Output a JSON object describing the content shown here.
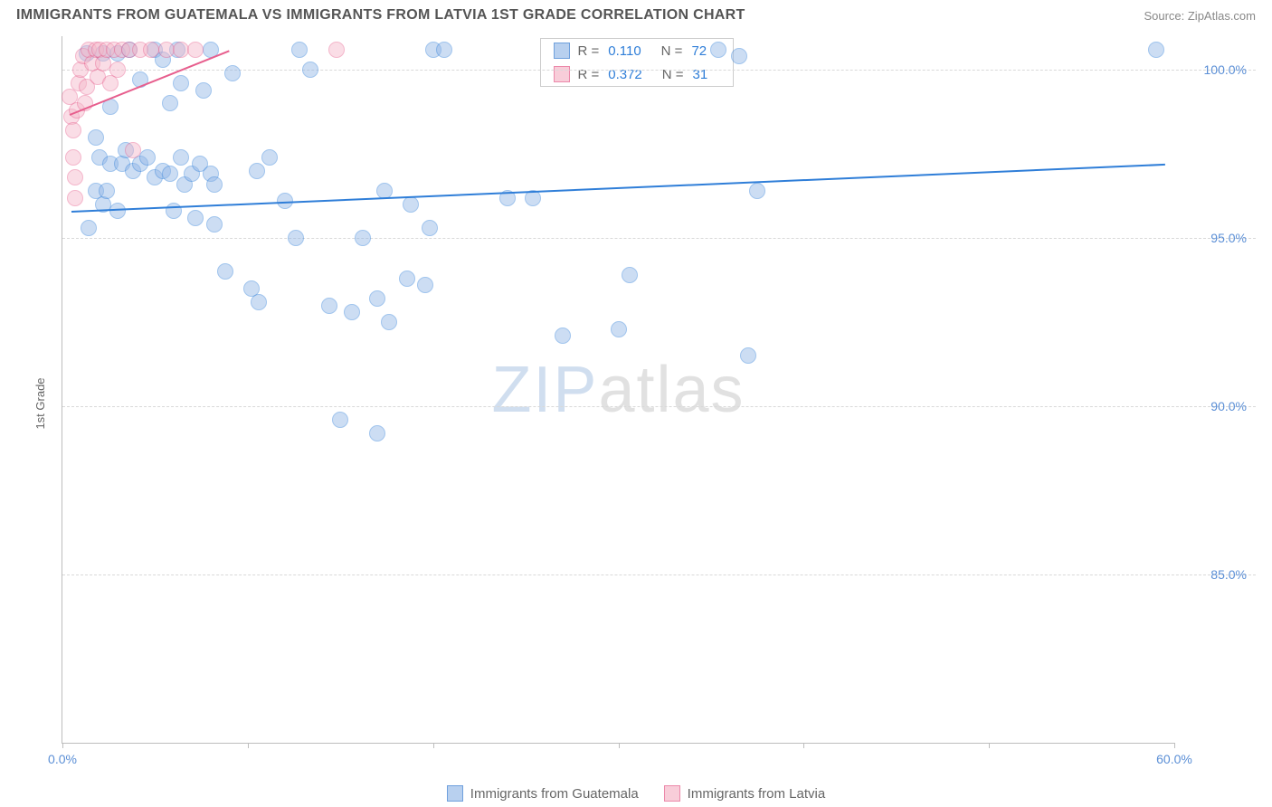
{
  "title": "IMMIGRANTS FROM GUATEMALA VS IMMIGRANTS FROM LATVIA 1ST GRADE CORRELATION CHART",
  "source_label": "Source: ",
  "source_name": "ZipAtlas.com",
  "ylabel": "1st Grade",
  "watermark_a": "ZIP",
  "watermark_b": "atlas",
  "chart": {
    "type": "scatter",
    "background_color": "#ffffff",
    "grid_color": "#d9d9d9",
    "axis_color": "#bdbdbd",
    "xlim": [
      0,
      60
    ],
    "ylim": [
      80,
      101
    ],
    "x_ticks": [
      0,
      10,
      20,
      30,
      40,
      50,
      60
    ],
    "x_tick_labels": {
      "0": "0.0%",
      "60": "60.0%"
    },
    "y_ticks": [
      85,
      90,
      95,
      100
    ],
    "y_tick_labels": {
      "85": "85.0%",
      "90": "90.0%",
      "95": "95.0%",
      "100": "100.0%"
    },
    "marker_radius": 9,
    "marker_opacity": 0.45,
    "series": [
      {
        "name": "Immigrants from Guatemala",
        "fill_color": "#8fb5e6",
        "stroke_color": "#2f7ed8",
        "swatch_fill": "#b8d0ef",
        "swatch_border": "#6fa0dd",
        "r_value": "0.110",
        "n_value": "72",
        "trend": {
          "x1": 0.5,
          "y1": 95.8,
          "x2": 59.5,
          "y2": 97.2,
          "color": "#2f7ed8",
          "width": 2
        },
        "points": [
          [
            1.3,
            100.5
          ],
          [
            2.2,
            100.5
          ],
          [
            3.0,
            100.5
          ],
          [
            3.6,
            100.6
          ],
          [
            5.0,
            100.6
          ],
          [
            5.4,
            100.3
          ],
          [
            6.2,
            100.6
          ],
          [
            8.0,
            100.6
          ],
          [
            9.2,
            99.9
          ],
          [
            12.8,
            100.6
          ],
          [
            13.4,
            100.0
          ],
          [
            20.0,
            100.6
          ],
          [
            20.6,
            100.6
          ],
          [
            35.4,
            100.6
          ],
          [
            59.0,
            100.6
          ],
          [
            2.0,
            97.4
          ],
          [
            2.6,
            97.2
          ],
          [
            3.2,
            97.2
          ],
          [
            3.4,
            97.6
          ],
          [
            3.8,
            97.0
          ],
          [
            4.2,
            97.2
          ],
          [
            4.6,
            97.4
          ],
          [
            5.0,
            96.8
          ],
          [
            5.4,
            97.0
          ],
          [
            5.8,
            96.9
          ],
          [
            6.4,
            97.4
          ],
          [
            6.6,
            96.6
          ],
          [
            7.0,
            96.9
          ],
          [
            7.4,
            97.2
          ],
          [
            8.0,
            96.9
          ],
          [
            1.8,
            96.4
          ],
          [
            2.2,
            96.0
          ],
          [
            6.0,
            95.8
          ],
          [
            7.2,
            95.6
          ],
          [
            8.2,
            95.4
          ],
          [
            8.2,
            96.6
          ],
          [
            10.5,
            97.0
          ],
          [
            11.2,
            97.4
          ],
          [
            12.0,
            96.1
          ],
          [
            12.6,
            95.0
          ],
          [
            8.8,
            94.0
          ],
          [
            10.2,
            93.5
          ],
          [
            10.6,
            93.1
          ],
          [
            14.4,
            93.0
          ],
          [
            15.6,
            92.8
          ],
          [
            17.0,
            93.2
          ],
          [
            17.6,
            92.5
          ],
          [
            18.6,
            93.8
          ],
          [
            19.6,
            93.6
          ],
          [
            16.2,
            95.0
          ],
          [
            17.4,
            96.4
          ],
          [
            18.8,
            96.0
          ],
          [
            19.8,
            95.3
          ],
          [
            24.0,
            96.2
          ],
          [
            25.4,
            96.2
          ],
          [
            15.0,
            89.6
          ],
          [
            17.0,
            89.2
          ],
          [
            27.0,
            92.1
          ],
          [
            30.0,
            92.3
          ],
          [
            30.6,
            93.9
          ],
          [
            36.5,
            100.4
          ],
          [
            37.0,
            91.5
          ],
          [
            37.5,
            96.4
          ],
          [
            2.6,
            98.9
          ],
          [
            4.2,
            99.7
          ],
          [
            5.8,
            99.0
          ],
          [
            6.4,
            99.6
          ],
          [
            7.6,
            99.4
          ],
          [
            1.8,
            98.0
          ],
          [
            2.4,
            96.4
          ],
          [
            3.0,
            95.8
          ],
          [
            1.4,
            95.3
          ]
        ]
      },
      {
        "name": "Immigrants from Latvia",
        "fill_color": "#f4b6c8",
        "stroke_color": "#e75e8d",
        "swatch_fill": "#f8cdd9",
        "swatch_border": "#ec89aa",
        "r_value": "0.372",
        "n_value": "31",
        "trend": {
          "x1": 0.4,
          "y1": 98.7,
          "x2": 9.0,
          "y2": 100.6,
          "color": "#e75e8d",
          "width": 2
        },
        "points": [
          [
            0.4,
            99.2
          ],
          [
            0.5,
            98.6
          ],
          [
            0.6,
            98.2
          ],
          [
            0.6,
            97.4
          ],
          [
            0.7,
            96.8
          ],
          [
            0.7,
            96.2
          ],
          [
            0.8,
            98.8
          ],
          [
            0.9,
            99.6
          ],
          [
            1.0,
            100.0
          ],
          [
            1.1,
            100.4
          ],
          [
            1.2,
            99.0
          ],
          [
            1.3,
            99.5
          ],
          [
            1.4,
            100.6
          ],
          [
            1.6,
            100.2
          ],
          [
            1.8,
            100.6
          ],
          [
            1.9,
            99.8
          ],
          [
            2.0,
            100.6
          ],
          [
            2.2,
            100.2
          ],
          [
            2.4,
            100.6
          ],
          [
            2.6,
            99.6
          ],
          [
            2.8,
            100.6
          ],
          [
            3.0,
            100.0
          ],
          [
            3.2,
            100.6
          ],
          [
            3.6,
            100.6
          ],
          [
            3.8,
            97.6
          ],
          [
            4.2,
            100.6
          ],
          [
            4.8,
            100.6
          ],
          [
            5.6,
            100.6
          ],
          [
            6.4,
            100.6
          ],
          [
            7.2,
            100.6
          ],
          [
            14.8,
            100.6
          ]
        ]
      }
    ],
    "legend_box": {
      "r_label": "R  =",
      "n_label": "N  ="
    }
  },
  "bottom_legend": [
    {
      "label": "Immigrants from Guatemala",
      "fill": "#b8d0ef",
      "border": "#6fa0dd"
    },
    {
      "label": "Immigrants from Latvia",
      "fill": "#f8cdd9",
      "border": "#ec89aa"
    }
  ]
}
